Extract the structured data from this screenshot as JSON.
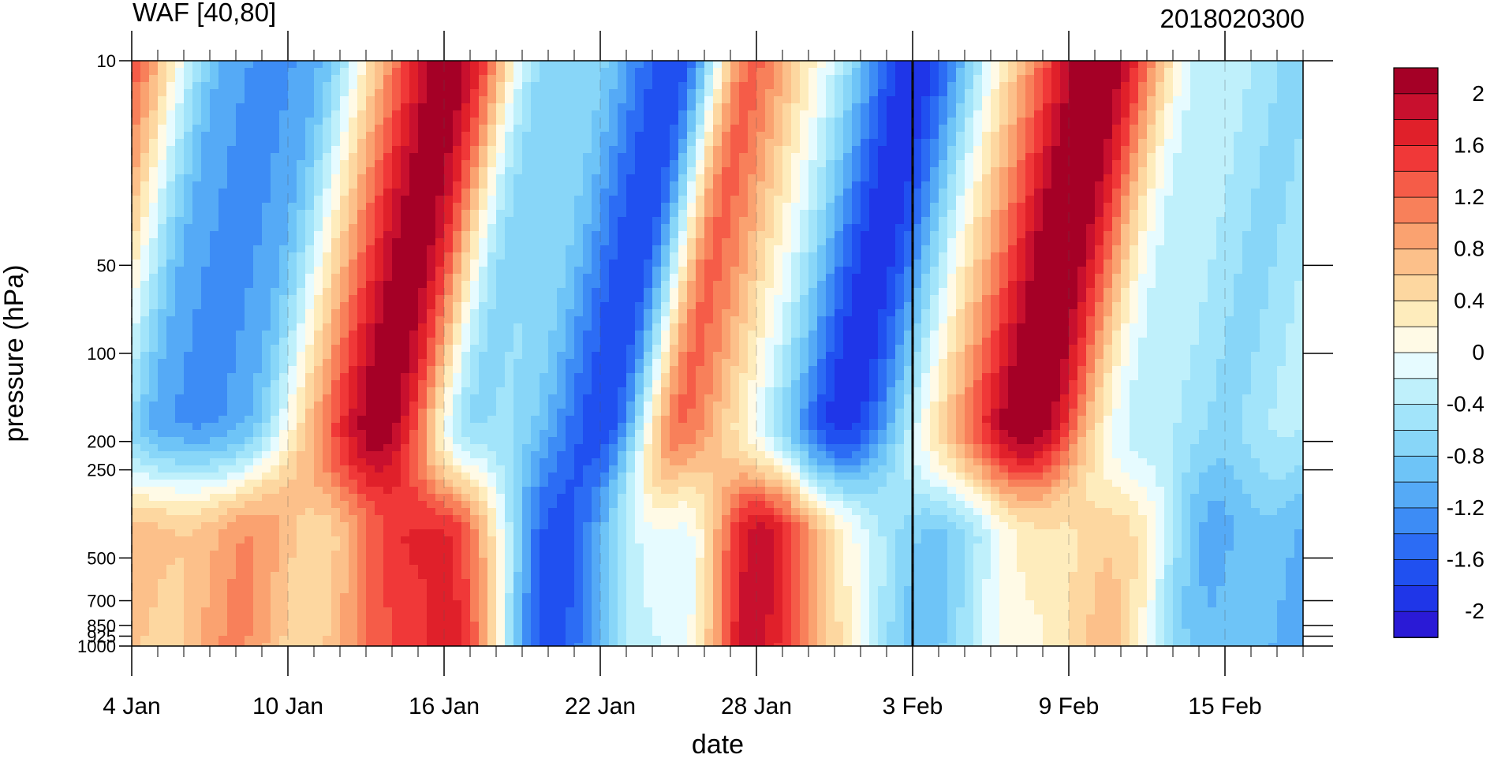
{
  "chart_data": {
    "type": "heatmap",
    "title": "WAF [40,80]",
    "subtitle": "2018020300",
    "xlabel": "date",
    "ylabel": "pressure (hPa)",
    "x_ticks": [
      "4 Jan",
      "10 Jan",
      "16 Jan",
      "22 Jan",
      "28 Jan",
      "3 Feb",
      "9 Feb",
      "15 Feb"
    ],
    "x_range": [
      "2018-01-04",
      "2018-02-18"
    ],
    "y_ticks": [
      10,
      50,
      100,
      200,
      250,
      500,
      700,
      850,
      925,
      1000
    ],
    "y_tick_labels": [
      "10",
      "50",
      "100",
      "200",
      "250",
      "500",
      "700",
      "850",
      "925",
      "1000"
    ],
    "y_scale": "log",
    "y_range": [
      1000,
      10
    ],
    "vertical_line": "3 Feb",
    "colorbar": {
      "labels": [
        "2",
        "1.6",
        "1.2",
        "0.8",
        "0.4",
        "0",
        "-0.4",
        "-0.8",
        "-1.2",
        "-1.6",
        "-2"
      ],
      "levels": [
        2.2,
        2.0,
        1.8,
        1.6,
        1.4,
        1.2,
        1.0,
        0.8,
        0.6,
        0.4,
        0.2,
        0.0,
        -0.2,
        -0.4,
        -0.6,
        -0.8,
        -1.0,
        -1.2,
        -1.4,
        -1.6,
        -1.8,
        -2.0,
        -2.2
      ],
      "colors": [
        "#a50026",
        "#c8102e",
        "#e0202a",
        "#f03838",
        "#f55c48",
        "#f8805a",
        "#faa270",
        "#fcc08a",
        "#fdd7a0",
        "#feecbc",
        "#fffae6",
        "#e6fbff",
        "#bff0fb",
        "#a2e4fa",
        "#88d6f8",
        "#6ec4f7",
        "#55aaf6",
        "#3d8cf5",
        "#2c6cf4",
        "#2050f0",
        "#1f36e8",
        "#2a1ad6"
      ]
    },
    "field": {
      "date_centers": [
        "4 Jan",
        "8 Jan",
        "11 Jan",
        "16 Jan",
        "20 Jan",
        "25 Jan",
        "28 Jan",
        "3 Feb",
        "10 Feb",
        "15 Feb"
      ],
      "stratosphere_10_200hPa": [
        1.3,
        -1.3,
        -1.0,
        2.2,
        -0.5,
        -1.6,
        1.2,
        -1.8,
        2.2,
        -0.5
      ],
      "troposphere_500_1000hPa": [
        0.6,
        0.9,
        0.6,
        1.8,
        -1.6,
        0.0,
        1.8,
        -0.8,
        0.6,
        -1.0
      ]
    }
  }
}
